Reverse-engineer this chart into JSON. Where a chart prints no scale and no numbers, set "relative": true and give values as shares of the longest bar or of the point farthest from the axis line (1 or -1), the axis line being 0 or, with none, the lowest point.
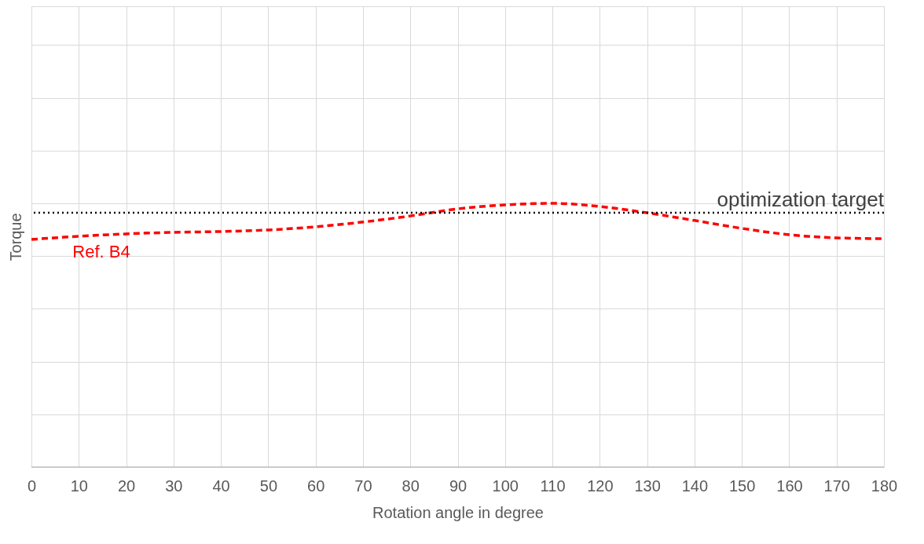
{
  "chart_data": {
    "type": "line",
    "relative": true,
    "xlabel": "Rotation angle in degree",
    "ylabel": "Torque",
    "x": [
      0,
      10,
      20,
      30,
      40,
      50,
      60,
      70,
      80,
      90,
      100,
      110,
      120,
      130,
      140,
      150,
      160,
      170,
      180
    ],
    "xlim": [
      0,
      180
    ],
    "xticks": [
      0,
      10,
      20,
      30,
      40,
      50,
      60,
      70,
      80,
      90,
      100,
      110,
      120,
      130,
      140,
      150,
      160,
      170,
      180
    ],
    "series": [
      {
        "name": "Ref. B4",
        "color": "#ff0000",
        "line_style": "dashed",
        "values": [
          0.863,
          0.875,
          0.884,
          0.89,
          0.893,
          0.899,
          0.911,
          0.929,
          0.952,
          0.979,
          0.994,
          1,
          0.988,
          0.964,
          0.935,
          0.905,
          0.881,
          0.869,
          0.866
        ]
      }
    ],
    "ref_lines": [
      {
        "axis": "y",
        "value": 0.964,
        "label": "optimization target",
        "color": "#000000",
        "line_style": "dotted"
      }
    ],
    "grid": true
  }
}
